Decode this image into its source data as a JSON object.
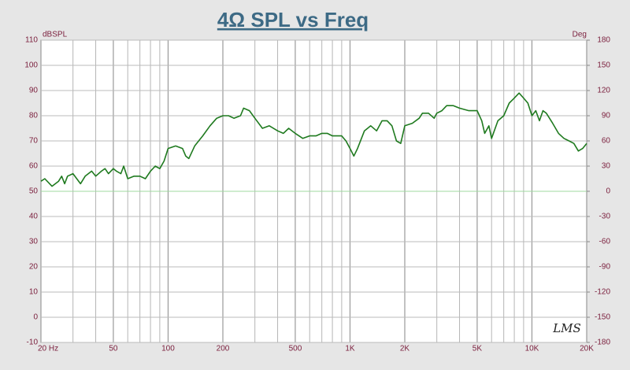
{
  "chart_data": {
    "type": "line",
    "title": "4Ω SPL vs Freq",
    "y_label": "dBSPL",
    "y2_label": "Deg",
    "watermark": "LMS",
    "log_x": true,
    "grid": true,
    "xlim": [
      20,
      20000
    ],
    "xticks": [
      {
        "value": 20,
        "label": "20  Hz"
      },
      50,
      100,
      200,
      500,
      {
        "value": 1000,
        "label": "1K"
      },
      {
        "value": 2000,
        "label": "2K"
      },
      {
        "value": 5000,
        "label": "5K"
      },
      {
        "value": 10000,
        "label": "10K"
      },
      {
        "value": 20000,
        "label": "20K"
      }
    ],
    "x_minor_ticks": [
      30,
      40,
      60,
      70,
      80,
      90,
      300,
      400,
      600,
      700,
      800,
      900,
      3000,
      4000,
      6000,
      7000,
      8000,
      9000
    ],
    "ylim": [
      -10,
      110
    ],
    "yticks": [
      -10,
      0,
      10,
      20,
      30,
      40,
      50,
      60,
      70,
      80,
      90,
      100,
      110
    ],
    "y2lim": [
      -180,
      180
    ],
    "y2ticks": [
      -180,
      -150,
      -120,
      -90,
      -60,
      -30,
      0,
      30,
      60,
      90,
      120,
      150,
      180
    ],
    "series": [
      {
        "color": "#1f7a1f",
        "x": [
          20,
          21,
          23,
          25,
          26,
          27,
          28,
          30,
          33,
          35,
          38,
          40,
          43,
          45,
          47,
          50,
          52,
          55,
          57,
          60,
          65,
          70,
          75,
          80,
          85,
          90,
          95,
          100,
          110,
          120,
          125,
          130,
          140,
          155,
          170,
          185,
          200,
          215,
          230,
          250,
          260,
          280,
          300,
          330,
          360,
          400,
          430,
          460,
          500,
          550,
          600,
          650,
          700,
          750,
          800,
          850,
          900,
          950,
          1000,
          1050,
          1100,
          1200,
          1300,
          1400,
          1500,
          1600,
          1700,
          1800,
          1900,
          2000,
          2200,
          2400,
          2500,
          2700,
          2900,
          3000,
          3200,
          3400,
          3700,
          4000,
          4500,
          5000,
          5300,
          5500,
          5800,
          6000,
          6500,
          7000,
          7500,
          8000,
          8500,
          9000,
          9500,
          10000,
          10500,
          11000,
          11500,
          12000,
          13000,
          14000,
          15000,
          16000,
          17000,
          18000,
          19000,
          20000
        ],
        "values": [
          54,
          55,
          52,
          54,
          56,
          53,
          56,
          57,
          53,
          56,
          58,
          56,
          58,
          59,
          57,
          59,
          58,
          57,
          60,
          55,
          56,
          56,
          55,
          58,
          60,
          59,
          62,
          67,
          68,
          67,
          64,
          63,
          68,
          72,
          76,
          79,
          80,
          80,
          79,
          80,
          83,
          82,
          79,
          75,
          76,
          74,
          73,
          75,
          73,
          71,
          72,
          72,
          73,
          73,
          72,
          72,
          72,
          70,
          67,
          64,
          67,
          74,
          76,
          74,
          78,
          78,
          76,
          70,
          69,
          76,
          77,
          79,
          81,
          81,
          79,
          81,
          82,
          84,
          84,
          83,
          82,
          82,
          78,
          73,
          76,
          71,
          78,
          80,
          85,
          87,
          89,
          87,
          85,
          80,
          82,
          78,
          82,
          81,
          77,
          73,
          71,
          70,
          69,
          66,
          67,
          69
        ]
      },
      {
        "color": "#9fd89f",
        "axis": "y2",
        "x": [
          20,
          20000
        ],
        "values": [
          0,
          0
        ]
      }
    ]
  }
}
